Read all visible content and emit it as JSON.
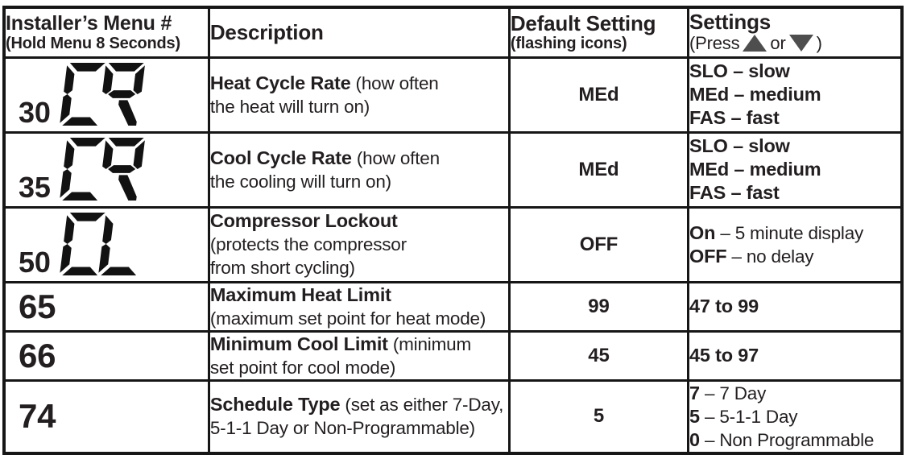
{
  "colors": {
    "text": "#231f20",
    "border": "#161616",
    "arrow": "#4e4e4e",
    "lcd": "#121212",
    "background": "#ffffff"
  },
  "table": {
    "header": {
      "col1_line1": "Installer’s Menu #",
      "col1_line2": "(Hold Menu 8 Seconds)",
      "col2": "Description",
      "col3_line1": "Default Setting",
      "col3_line2": "(flashing icons)",
      "col4_line1": "Settings",
      "col4_press": "(Press",
      "col4_or": "or",
      "col4_close": ")"
    },
    "rows": [
      {
        "menu_number": "30",
        "lcd": "CR",
        "desc": [
          {
            "b": "Heat Cycle Rate",
            "r": " (how often"
          },
          {
            "b": "",
            "r": "the heat will turn on)"
          },
          {
            "b": "",
            "r": ""
          }
        ],
        "default": "MEd",
        "settings": [
          {
            "b": "SLO – slow",
            "r": ""
          },
          {
            "b": "MEd – medium",
            "r": ""
          },
          {
            "b": "FAS – fast",
            "r": ""
          }
        ]
      },
      {
        "menu_number": "35",
        "lcd": "CR",
        "desc": [
          {
            "b": "Cool Cycle Rate",
            "r": " (how often"
          },
          {
            "b": "",
            "r": "the cooling will turn on)"
          },
          {
            "b": "",
            "r": ""
          }
        ],
        "default": "MEd",
        "settings": [
          {
            "b": "SLO – slow",
            "r": ""
          },
          {
            "b": "MEd – medium",
            "r": ""
          },
          {
            "b": "FAS – fast",
            "r": ""
          }
        ]
      },
      {
        "menu_number": "50",
        "lcd": "CL",
        "desc": [
          {
            "b": "Compressor Lockout",
            "r": ""
          },
          {
            "b": "",
            "r": "(protects the compressor"
          },
          {
            "b": "",
            "r": "from short cycling)"
          }
        ],
        "default": "OFF",
        "settings": [
          {
            "b": "On",
            "r": " – 5 minute display"
          },
          {
            "b": "OFF",
            "r": " – no delay"
          },
          {
            "b": "",
            "r": ""
          }
        ]
      },
      {
        "menu_number": "65",
        "lcd": "",
        "desc": [
          {
            "b": "Maximum Heat Limit",
            "r": ""
          },
          {
            "b": "",
            "r": "(maximum set point for heat mode)"
          },
          {
            "b": "",
            "r": ""
          }
        ],
        "default": "99",
        "settings": [
          {
            "b": "47 to 99",
            "r": ""
          },
          {
            "b": "",
            "r": ""
          },
          {
            "b": "",
            "r": ""
          }
        ]
      },
      {
        "menu_number": "66",
        "lcd": "",
        "desc": [
          {
            "b": "Minimum Cool Limit",
            "r": " (minimum"
          },
          {
            "b": "",
            "r": "set point for cool mode)"
          },
          {
            "b": "",
            "r": ""
          }
        ],
        "default": "45",
        "settings": [
          {
            "b": "45 to 97",
            "r": ""
          },
          {
            "b": "",
            "r": ""
          },
          {
            "b": "",
            "r": ""
          }
        ]
      },
      {
        "menu_number": "74",
        "lcd": "",
        "desc": [
          {
            "b": "Schedule Type",
            "r": " (set as either 7-Day,"
          },
          {
            "b": "",
            "r": "5-1-1 Day or Non-Programmable)"
          },
          {
            "b": "",
            "r": ""
          }
        ],
        "default": "5",
        "settings": [
          {
            "b": "7",
            "r": " – 7 Day"
          },
          {
            "b": "5",
            "r": " – 5-1-1 Day"
          },
          {
            "b": "0",
            "r": " – Non Programmable"
          }
        ]
      }
    ]
  }
}
